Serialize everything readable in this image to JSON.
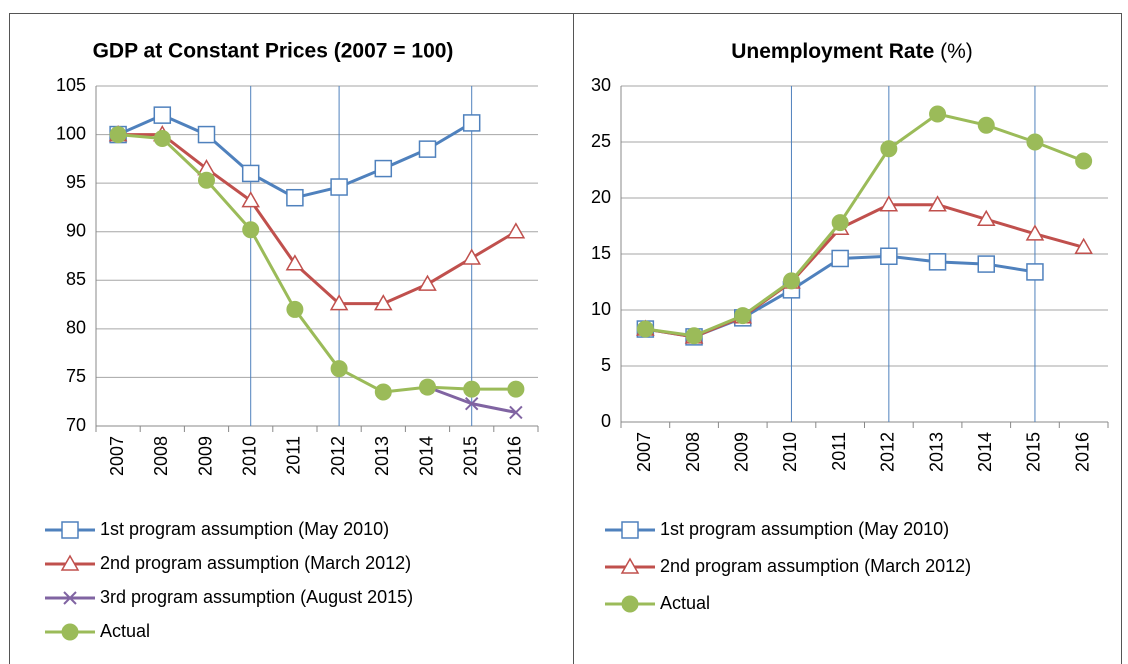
{
  "chart_data": [
    {
      "type": "line",
      "title": "GDP at Constant Prices (2007 = 100)",
      "categories": [
        "2007",
        "2008",
        "2009",
        "2010",
        "2011",
        "2012",
        "2013",
        "2014",
        "2015",
        "2016"
      ],
      "ylim": [
        70,
        105
      ],
      "yticks": [
        70,
        75,
        80,
        85,
        90,
        95,
        100,
        105
      ],
      "grid": true,
      "reference_lines": [
        "2010",
        "2012",
        "2015"
      ],
      "series": [
        {
          "name": "1st program assumption (May 2010)",
          "color": "#4f81bd",
          "marker": "square",
          "values": [
            100,
            102,
            100,
            96,
            93.5,
            94.6,
            96.5,
            98.5,
            101.2,
            null
          ]
        },
        {
          "name": "2nd program assumption (March 2012)",
          "color": "#c0504d",
          "marker": "triangle",
          "values": [
            100,
            100,
            96.5,
            93.2,
            86.7,
            82.6,
            82.6,
            84.6,
            87.3,
            90
          ]
        },
        {
          "name": "3rd program assumption (August 2015)",
          "color": "#8064a2",
          "marker": "x",
          "values": [
            null,
            null,
            null,
            null,
            null,
            null,
            null,
            74,
            72.3,
            71.4
          ]
        },
        {
          "name": "Actual",
          "color": "#9bbb59",
          "marker": "circle",
          "values": [
            100,
            99.6,
            95.3,
            90.2,
            82,
            75.9,
            73.5,
            74,
            73.8,
            73.8
          ]
        }
      ]
    },
    {
      "type": "line",
      "title": "Unemployment Rate",
      "title_suffix": "(%)",
      "categories": [
        "2007",
        "2008",
        "2009",
        "2010",
        "2011",
        "2012",
        "2013",
        "2014",
        "2015",
        "2016"
      ],
      "ylim": [
        0,
        30
      ],
      "yticks": [
        0,
        5,
        10,
        15,
        20,
        25,
        30
      ],
      "grid": true,
      "reference_lines": [
        "2010",
        "2012",
        "2015"
      ],
      "series": [
        {
          "name": "1st program assumption (May 2010)",
          "color": "#4f81bd",
          "marker": "square",
          "values": [
            8.3,
            7.6,
            9.3,
            11.8,
            14.6,
            14.8,
            14.3,
            14.1,
            13.4,
            null
          ]
        },
        {
          "name": "2nd program assumption (March 2012)",
          "color": "#c0504d",
          "marker": "triangle",
          "values": [
            8.3,
            7.6,
            9.4,
            12.5,
            17.3,
            19.4,
            19.4,
            18.1,
            16.8,
            15.6
          ]
        },
        {
          "name": "Actual",
          "color": "#9bbb59",
          "marker": "circle",
          "values": [
            8.3,
            7.7,
            9.5,
            12.6,
            17.8,
            24.4,
            27.5,
            26.5,
            25,
            23.3
          ]
        }
      ]
    }
  ]
}
